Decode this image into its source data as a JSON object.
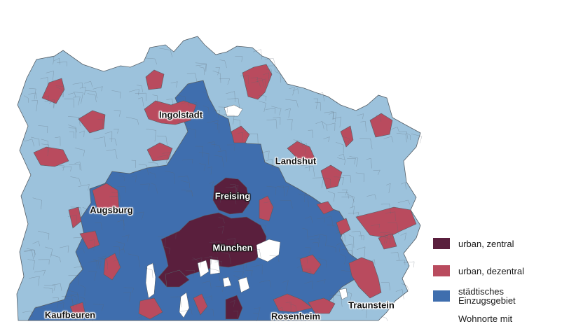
{
  "colors": {
    "urban_central": "#5a1f3d",
    "urban_decentral": "#b94b5e",
    "suburban": "#3f6eae",
    "rural": "#9cc2dc",
    "border": "#555e66",
    "lake": "#ffffff"
  },
  "cities": [
    {
      "name": "Ingolstadt",
      "style": "dark"
    },
    {
      "name": "Landshut",
      "style": "dark"
    },
    {
      "name": "Freising",
      "style": "light"
    },
    {
      "name": "Augsburg",
      "style": "dark"
    },
    {
      "name": "München",
      "style": "light"
    },
    {
      "name": "Traunstein",
      "style": "dark"
    },
    {
      "name": "Kaufbeuren",
      "style": "dark"
    },
    {
      "name": "Rosenheim",
      "style": "dark"
    }
  ],
  "legend": {
    "items": [
      {
        "label": "urban, zentral",
        "color": "#5a1f3d"
      },
      {
        "label": "urban, dezentral",
        "color": "#b94b5e"
      },
      {
        "label": "städtisches Einzugsgebiet",
        "color": "#3f6eae"
      },
      {
        "label": "Wohnorte mit",
        "color": "#9cc2dc"
      }
    ]
  }
}
